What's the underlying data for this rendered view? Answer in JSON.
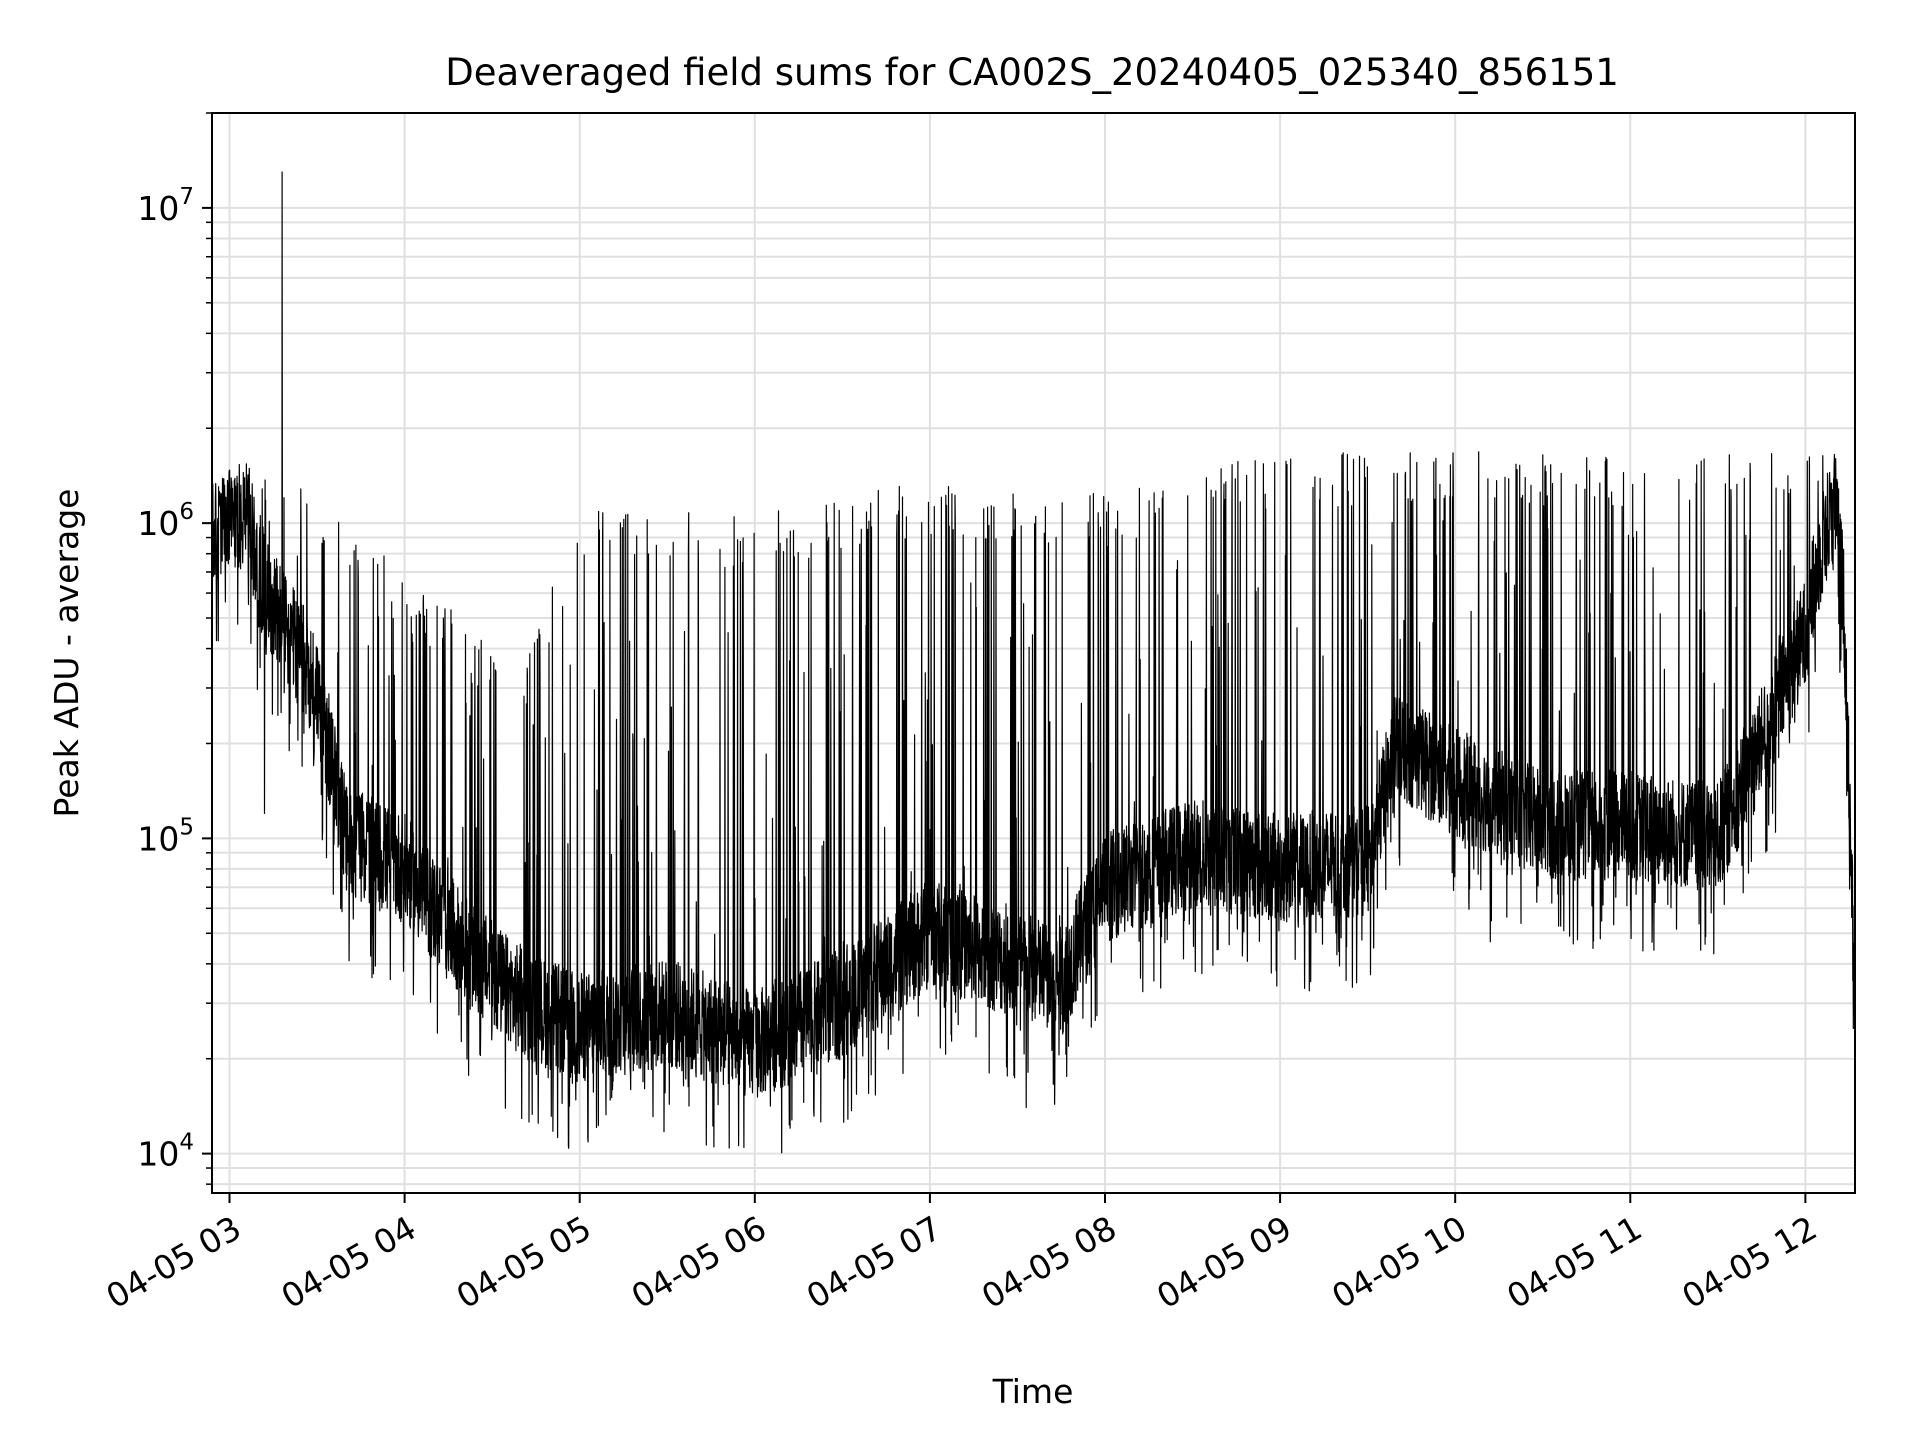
{
  "chart_data": {
    "type": "line",
    "title": "Deaveraged field sums for CA002S_20240405_025340_856151",
    "xlabel": "Time",
    "ylabel": "Peak ADU - average",
    "yscale": "log",
    "ylim": [
      7500,
      20000000
    ],
    "xlim": [
      "04-05 02:54",
      "04-05 12:17"
    ],
    "grid": true,
    "line_color": "#000000",
    "grid_color": "#e0e0e0",
    "x_ticks": [
      {
        "t": "04-05 03:00",
        "label": "04-05 03"
      },
      {
        "t": "04-05 04:00",
        "label": "04-05 04"
      },
      {
        "t": "04-05 05:00",
        "label": "04-05 05"
      },
      {
        "t": "04-05 06:00",
        "label": "04-05 06"
      },
      {
        "t": "04-05 07:00",
        "label": "04-05 07"
      },
      {
        "t": "04-05 08:00",
        "label": "04-05 08"
      },
      {
        "t": "04-05 09:00",
        "label": "04-05 09"
      },
      {
        "t": "04-05 10:00",
        "label": "04-05 10"
      },
      {
        "t": "04-05 11:00",
        "label": "04-05 11"
      },
      {
        "t": "04-05 12:00",
        "label": "04-05 12"
      }
    ],
    "y_ticks": [
      {
        "value": 10000,
        "base": "10",
        "exp": "4"
      },
      {
        "value": 100000,
        "base": "10",
        "exp": "5"
      },
      {
        "value": 1000000,
        "base": "10",
        "exp": "6"
      },
      {
        "value": 10000000,
        "base": "10",
        "exp": "7"
      }
    ],
    "baseline": [
      {
        "t": "04-05 02:54",
        "y": 900000
      },
      {
        "t": "04-05 03:06",
        "y": 1100000
      },
      {
        "t": "04-05 03:10",
        "y": 700000
      },
      {
        "t": "04-05 03:20",
        "y": 450000
      },
      {
        "t": "04-05 03:30",
        "y": 300000
      },
      {
        "t": "04-05 03:40",
        "y": 100000
      },
      {
        "t": "04-05 04:00",
        "y": 80000
      },
      {
        "t": "04-05 04:20",
        "y": 45000
      },
      {
        "t": "04-05 04:40",
        "y": 30000
      },
      {
        "t": "04-05 05:00",
        "y": 25000
      },
      {
        "t": "04-05 05:30",
        "y": 28000
      },
      {
        "t": "04-05 06:00",
        "y": 22000
      },
      {
        "t": "04-05 06:30",
        "y": 30000
      },
      {
        "t": "04-05 07:00",
        "y": 50000
      },
      {
        "t": "04-05 07:30",
        "y": 40000
      },
      {
        "t": "04-05 07:45",
        "y": 35000
      },
      {
        "t": "04-05 08:00",
        "y": 70000
      },
      {
        "t": "04-05 08:30",
        "y": 90000
      },
      {
        "t": "04-05 09:00",
        "y": 80000
      },
      {
        "t": "04-05 09:30",
        "y": 85000
      },
      {
        "t": "04-05 09:40",
        "y": 200000
      },
      {
        "t": "04-05 10:00",
        "y": 150000
      },
      {
        "t": "04-05 10:30",
        "y": 110000
      },
      {
        "t": "04-05 11:00",
        "y": 110000
      },
      {
        "t": "04-05 11:30",
        "y": 100000
      },
      {
        "t": "04-05 11:45",
        "y": 200000
      },
      {
        "t": "04-05 12:00",
        "y": 450000
      },
      {
        "t": "04-05 12:05",
        "y": 800000
      },
      {
        "t": "04-05 12:10",
        "y": 1200000
      },
      {
        "t": "04-05 12:13",
        "y": 600000
      },
      {
        "t": "04-05 12:17",
        "y": 40000
      }
    ],
    "spike_envelope": [
      {
        "t": "04-05 02:54",
        "y": 1200000
      },
      {
        "t": "04-05 03:20",
        "y": 1500000
      },
      {
        "t": "04-05 04:00",
        "y": 700000
      },
      {
        "t": "04-05 04:40",
        "y": 350000
      },
      {
        "t": "04-05 05:00",
        "y": 1150000
      },
      {
        "t": "04-05 06:00",
        "y": 1050000
      },
      {
        "t": "04-05 06:45",
        "y": 1350000
      },
      {
        "t": "04-05 08:00",
        "y": 1250000
      },
      {
        "t": "04-05 09:00",
        "y": 1700000
      },
      {
        "t": "04-05 11:45",
        "y": 1700000
      }
    ],
    "notable_points": [
      {
        "t": "04-05 03:18",
        "y": 13000000
      },
      {
        "t": "04-05 05:46",
        "y": 10500
      },
      {
        "t": "04-05 07:33",
        "y": 14000
      },
      {
        "t": "04-05 10:12",
        "y": 47000
      },
      {
        "t": "04-05 03:12",
        "y": 120000
      }
    ]
  }
}
